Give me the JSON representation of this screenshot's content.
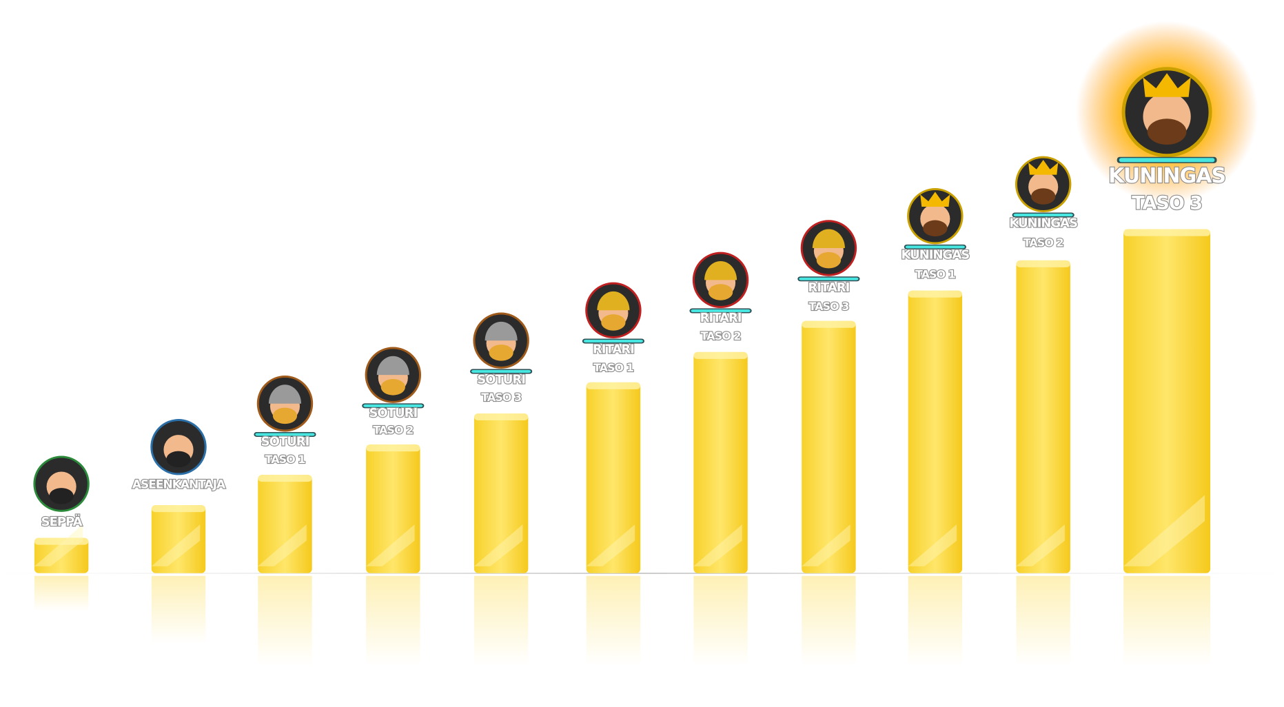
{
  "ranks": [
    {
      "name": "SEPPÄ"
    },
    {
      "name": "ASEENKANTAJA"
    },
    {
      "name": "SOTURI",
      "level": "TASO 1"
    },
    {
      "name": "SOTURI",
      "level": "TASO 2"
    },
    {
      "name": "SOTURI",
      "level": "TASO 3"
    },
    {
      "name": "RITARI",
      "level": "TASO 1"
    },
    {
      "name": "RITARI",
      "level": "TASO 2"
    },
    {
      "name": "RITARI",
      "level": "TASO 3"
    },
    {
      "name": "KUNINGAS",
      "level": "TASO 1"
    },
    {
      "name": "KUNINGAS",
      "level": "TASO 2"
    },
    {
      "name": "KUNINGAS",
      "level": "TASO 3"
    }
  ]
}
